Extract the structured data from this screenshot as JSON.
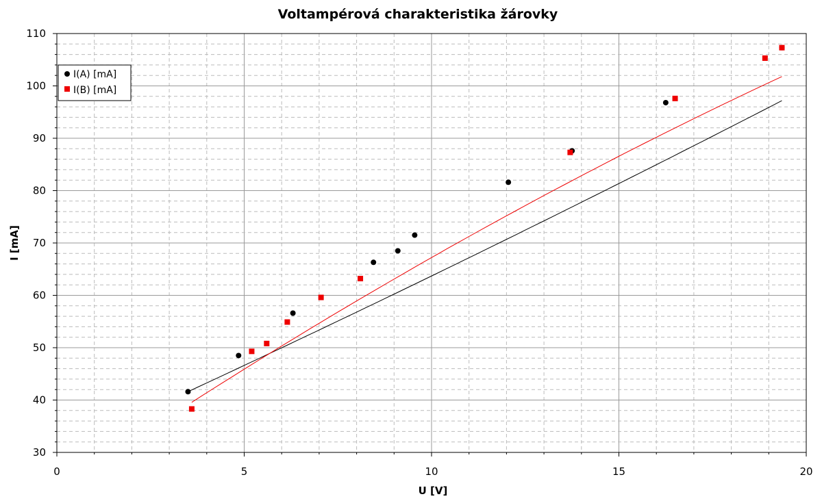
{
  "chart_data": {
    "type": "scatter",
    "title": "Voltampérová charakteristika žárovky",
    "xlabel": "U [V]",
    "ylabel": "I [mA]",
    "xlim": [
      0,
      20
    ],
    "ylim": [
      30,
      110
    ],
    "x_ticks": [
      "0",
      "5",
      "10",
      "15",
      "20"
    ],
    "y_ticks": [
      "30",
      "40",
      "50",
      "60",
      "70",
      "80",
      "90",
      "100",
      "110"
    ],
    "grid": true,
    "legend_position": "top-left",
    "series": [
      {
        "name": "I(A) [mA]",
        "color": "#000000",
        "marker": "circle",
        "x": [
          3.5,
          4.85,
          6.3,
          8.45,
          9.1,
          9.55,
          12.05,
          13.75,
          16.25,
          19.35
        ],
        "y": [
          41.6,
          48.5,
          56.6,
          66.3,
          68.5,
          71.5,
          81.6,
          87.6,
          96.8,
          107.3
        ],
        "fit": [
          0.0114,
          3.2456,
          30.1
        ]
      },
      {
        "name": "I(B) [mA]",
        "color": "#ee0000",
        "marker": "square",
        "x": [
          3.6,
          5.2,
          5.6,
          6.15,
          7.05,
          8.1,
          13.7,
          16.5,
          18.9,
          19.35
        ],
        "y": [
          38.3,
          49.3,
          50.8,
          54.9,
          59.6,
          63.2,
          87.3,
          97.6,
          105.3,
          107.3
        ],
        "fit": [
          -0.0395,
          4.8564,
          22.6
        ]
      }
    ]
  }
}
